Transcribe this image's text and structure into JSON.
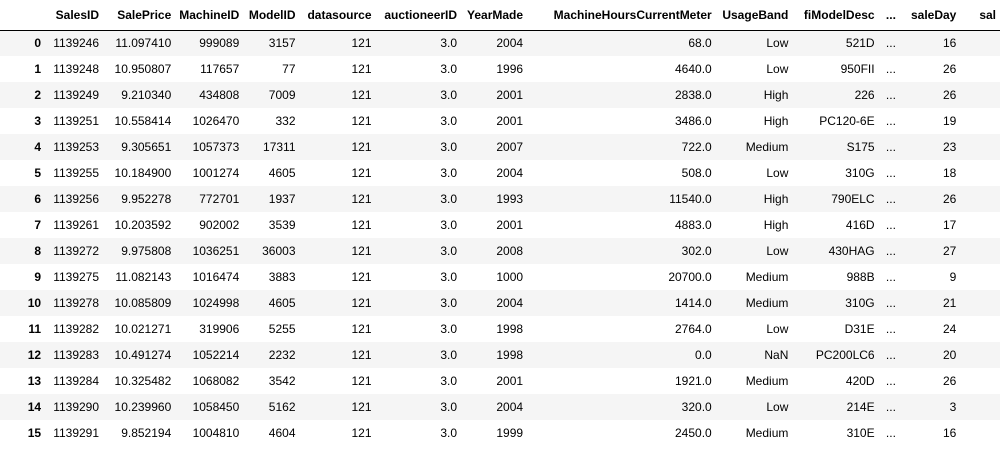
{
  "dataframe": {
    "columns": [
      "SalesID",
      "SalePrice",
      "MachineID",
      "ModelID",
      "datasource",
      "auctioneerID",
      "YearMade",
      "MachineHoursCurrentMeter",
      "UsageBand",
      "fiModelDesc",
      "...",
      "saleDay",
      "sal"
    ],
    "rows": [
      {
        "index": "0",
        "cells": [
          "1139246",
          "11.097410",
          "999089",
          "3157",
          "121",
          "3.0",
          "2004",
          "68.0",
          "Low",
          "521D",
          "...",
          "16",
          ""
        ]
      },
      {
        "index": "1",
        "cells": [
          "1139248",
          "10.950807",
          "117657",
          "77",
          "121",
          "3.0",
          "1996",
          "4640.0",
          "Low",
          "950FII",
          "...",
          "26",
          ""
        ]
      },
      {
        "index": "2",
        "cells": [
          "1139249",
          "9.210340",
          "434808",
          "7009",
          "121",
          "3.0",
          "2001",
          "2838.0",
          "High",
          "226",
          "...",
          "26",
          ""
        ]
      },
      {
        "index": "3",
        "cells": [
          "1139251",
          "10.558414",
          "1026470",
          "332",
          "121",
          "3.0",
          "2001",
          "3486.0",
          "High",
          "PC120-6E",
          "...",
          "19",
          ""
        ]
      },
      {
        "index": "4",
        "cells": [
          "1139253",
          "9.305651",
          "1057373",
          "17311",
          "121",
          "3.0",
          "2007",
          "722.0",
          "Medium",
          "S175",
          "...",
          "23",
          ""
        ]
      },
      {
        "index": "5",
        "cells": [
          "1139255",
          "10.184900",
          "1001274",
          "4605",
          "121",
          "3.0",
          "2004",
          "508.0",
          "Low",
          "310G",
          "...",
          "18",
          ""
        ]
      },
      {
        "index": "6",
        "cells": [
          "1139256",
          "9.952278",
          "772701",
          "1937",
          "121",
          "3.0",
          "1993",
          "11540.0",
          "High",
          "790ELC",
          "...",
          "26",
          ""
        ]
      },
      {
        "index": "7",
        "cells": [
          "1139261",
          "10.203592",
          "902002",
          "3539",
          "121",
          "3.0",
          "2001",
          "4883.0",
          "High",
          "416D",
          "...",
          "17",
          ""
        ]
      },
      {
        "index": "8",
        "cells": [
          "1139272",
          "9.975808",
          "1036251",
          "36003",
          "121",
          "3.0",
          "2008",
          "302.0",
          "Low",
          "430HAG",
          "...",
          "27",
          ""
        ]
      },
      {
        "index": "9",
        "cells": [
          "1139275",
          "11.082143",
          "1016474",
          "3883",
          "121",
          "3.0",
          "1000",
          "20700.0",
          "Medium",
          "988B",
          "...",
          "9",
          ""
        ]
      },
      {
        "index": "10",
        "cells": [
          "1139278",
          "10.085809",
          "1024998",
          "4605",
          "121",
          "3.0",
          "2004",
          "1414.0",
          "Medium",
          "310G",
          "...",
          "21",
          ""
        ]
      },
      {
        "index": "11",
        "cells": [
          "1139282",
          "10.021271",
          "319906",
          "5255",
          "121",
          "3.0",
          "1998",
          "2764.0",
          "Low",
          "D31E",
          "...",
          "24",
          ""
        ]
      },
      {
        "index": "12",
        "cells": [
          "1139283",
          "10.491274",
          "1052214",
          "2232",
          "121",
          "3.0",
          "1998",
          "0.0",
          "NaN",
          "PC200LC6",
          "...",
          "20",
          ""
        ]
      },
      {
        "index": "13",
        "cells": [
          "1139284",
          "10.325482",
          "1068082",
          "3542",
          "121",
          "3.0",
          "2001",
          "1921.0",
          "Medium",
          "420D",
          "...",
          "26",
          ""
        ]
      },
      {
        "index": "14",
        "cells": [
          "1139290",
          "10.239960",
          "1058450",
          "5162",
          "121",
          "3.0",
          "2004",
          "320.0",
          "Low",
          "214E",
          "...",
          "3",
          ""
        ]
      },
      {
        "index": "15",
        "cells": [
          "1139291",
          "9.852194",
          "1004810",
          "4604",
          "121",
          "3.0",
          "1999",
          "2450.0",
          "Medium",
          "310E",
          "...",
          "16",
          ""
        ]
      }
    ]
  }
}
